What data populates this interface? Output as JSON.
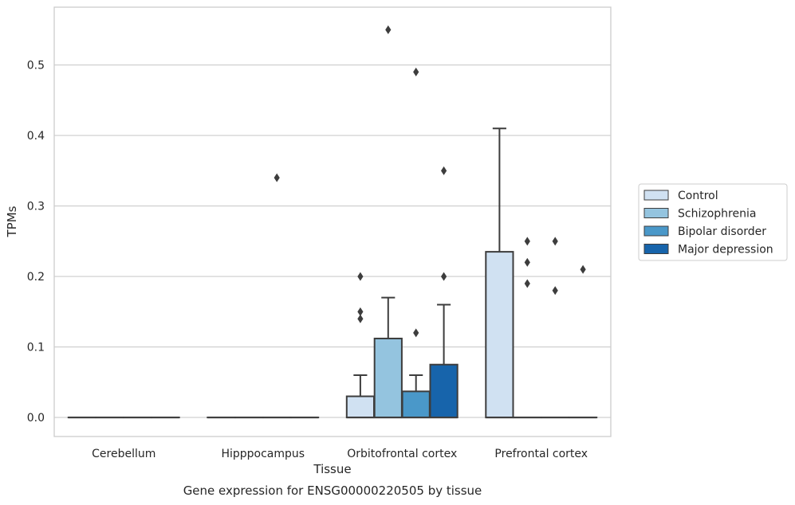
{
  "chart_data": {
    "type": "box",
    "title": "",
    "caption": "Gene expression for ENSG00000220505 by tissue",
    "xlabel": "Tissue",
    "ylabel": "TPMs",
    "ylim": [
      -0.027,
      0.582
    ],
    "yticks": [
      "0.0",
      "0.1",
      "0.2",
      "0.3",
      "0.4",
      "0.5"
    ],
    "grid": "horizontal",
    "legend_position": "right",
    "categories": [
      "Cerebellum",
      "Hipppocampus",
      "Orbitofrontal cortex",
      "Prefrontal cortex"
    ],
    "series": [
      {
        "name": "Control",
        "color": "#d0e1f2",
        "boxes": [
          {
            "q1": 0,
            "median": 0,
            "q3": 0,
            "whisker_low": 0,
            "whisker_high": 0,
            "outliers": []
          },
          {
            "q1": 0,
            "median": 0,
            "q3": 0,
            "whisker_low": 0,
            "whisker_high": 0,
            "outliers": []
          },
          {
            "q1": 0,
            "median": 0,
            "q3": 0.03,
            "whisker_low": 0,
            "whisker_high": 0.06,
            "outliers": [
              0.14,
              0.15,
              0.2
            ]
          },
          {
            "q1": 0,
            "median": 0,
            "q3": 0.235,
            "whisker_low": 0,
            "whisker_high": 0.41,
            "outliers": []
          }
        ]
      },
      {
        "name": "Schizophrenia",
        "color": "#94c4df",
        "boxes": [
          {
            "q1": 0,
            "median": 0,
            "q3": 0,
            "whisker_low": 0,
            "whisker_high": 0,
            "outliers": []
          },
          {
            "q1": 0,
            "median": 0,
            "q3": 0,
            "whisker_low": 0,
            "whisker_high": 0,
            "outliers": []
          },
          {
            "q1": 0,
            "median": 0,
            "q3": 0.112,
            "whisker_low": 0,
            "whisker_high": 0.17,
            "outliers": [
              0.55
            ]
          },
          {
            "q1": 0,
            "median": 0,
            "q3": 0,
            "whisker_low": 0,
            "whisker_high": 0,
            "outliers": [
              0.19,
              0.22,
              0.25
            ]
          }
        ]
      },
      {
        "name": "Bipolar disorder",
        "color": "#4a98c9",
        "boxes": [
          {
            "q1": 0,
            "median": 0,
            "q3": 0,
            "whisker_low": 0,
            "whisker_high": 0,
            "outliers": []
          },
          {
            "q1": 0,
            "median": 0,
            "q3": 0,
            "whisker_low": 0,
            "whisker_high": 0,
            "outliers": [
              0.34
            ]
          },
          {
            "q1": 0,
            "median": 0,
            "q3": 0.037,
            "whisker_low": 0,
            "whisker_high": 0.06,
            "outliers": [
              0.12,
              0.49
            ]
          },
          {
            "q1": 0,
            "median": 0,
            "q3": 0,
            "whisker_low": 0,
            "whisker_high": 0,
            "outliers": [
              0.18,
              0.25
            ]
          }
        ]
      },
      {
        "name": "Major depression",
        "color": "#1764ab",
        "boxes": [
          {
            "q1": 0,
            "median": 0,
            "q3": 0,
            "whisker_low": 0,
            "whisker_high": 0,
            "outliers": []
          },
          {
            "q1": 0,
            "median": 0,
            "q3": 0,
            "whisker_low": 0,
            "whisker_high": 0,
            "outliers": []
          },
          {
            "q1": 0,
            "median": 0,
            "q3": 0.075,
            "whisker_low": 0,
            "whisker_high": 0.16,
            "outliers": [
              0.2,
              0.35
            ]
          },
          {
            "q1": 0,
            "median": 0,
            "q3": 0,
            "whisker_low": 0,
            "whisker_high": 0,
            "outliers": [
              0.21
            ]
          }
        ]
      }
    ]
  }
}
